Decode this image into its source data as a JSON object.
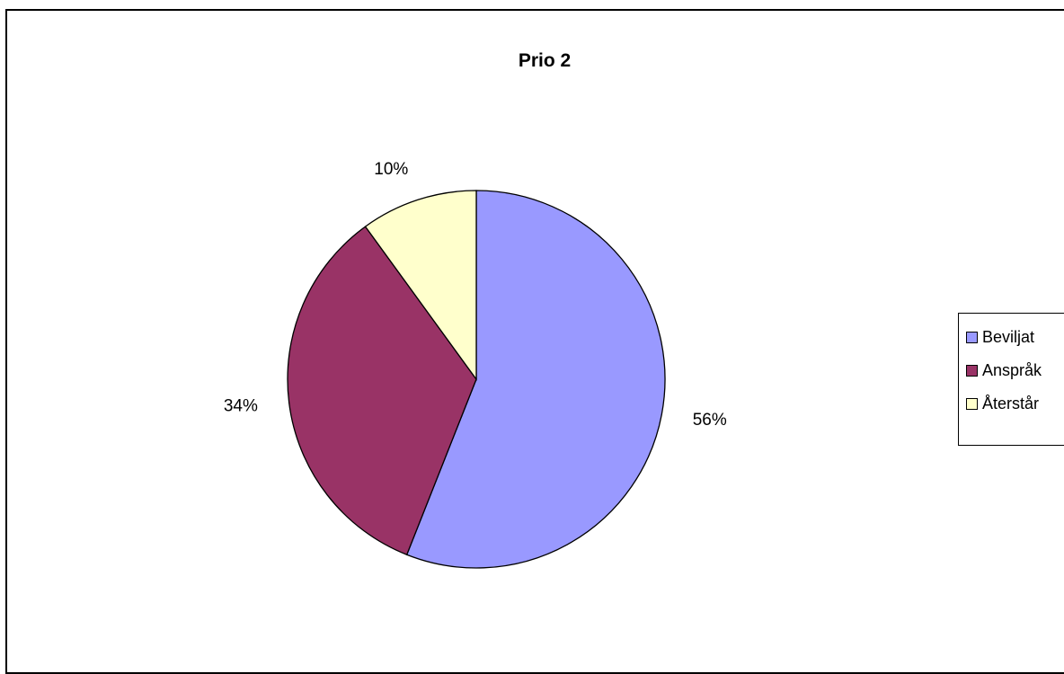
{
  "chart_data": {
    "type": "pie",
    "title": "Prio 2",
    "categories": [
      "Beviljat",
      "Anspråk",
      "Återstår"
    ],
    "values": [
      56,
      34,
      10
    ],
    "value_labels": [
      "56%",
      "34%",
      "10%"
    ],
    "colors": [
      "#9999ff",
      "#993366",
      "#ffffcc"
    ],
    "legend": {
      "position": "right",
      "entries": [
        "Beviljat",
        "Anspråk",
        "Återstår"
      ]
    },
    "start_angle": "12 o'clock",
    "direction": "clockwise"
  }
}
